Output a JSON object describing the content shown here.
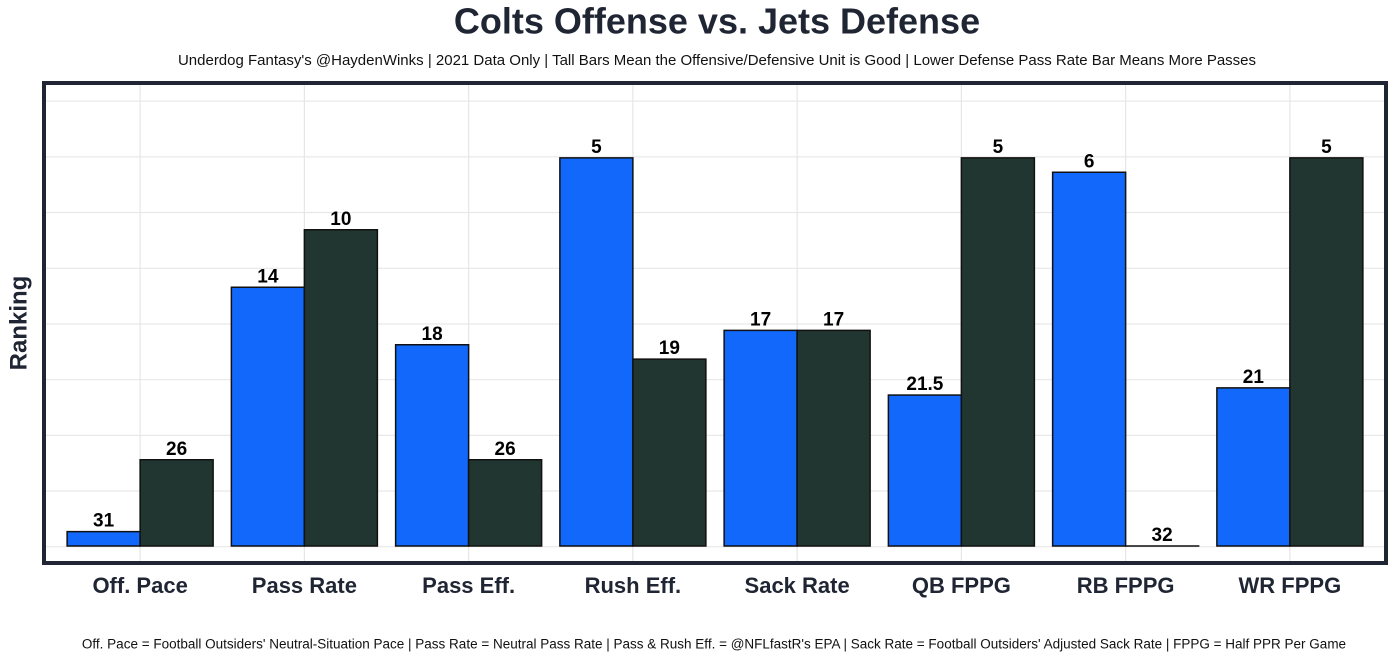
{
  "chart_data": {
    "type": "bar",
    "title": "Colts Offense vs. Jets Defense",
    "subtitle": "Underdog Fantasy's @HaydenWinks | 2021 Data Only | Tall Bars Mean the Offensive/Defensive Unit is Good | Lower Defense Pass Rate Bar Means More Passes",
    "y_label": "Ranking",
    "footnote": "Off. Pace = Football Outsiders' Neutral-Situation Pace | Pass Rate = Neutral Pass Rate | Pass & Rush Eff. = @NFLfastR's EPA | Sack Rate = Football Outsiders' Adjusted Sack Rate | FPPG = Half PPR Per Game",
    "categories": [
      "Off. Pace",
      "Pass Rate",
      "Pass Eff.",
      "Rush Eff.",
      "Sack Rate",
      "QB FPPG",
      "RB FPPG",
      "WR FPPG"
    ],
    "series": [
      {
        "color": "#1268fb",
        "values": [
          31,
          14,
          18,
          5,
          17,
          21.5,
          6,
          21
        ]
      },
      {
        "color": "#223631",
        "values": [
          26,
          10,
          26,
          19,
          17,
          5,
          32,
          5
        ]
      }
    ],
    "ylim": [
      32,
      0
    ]
  }
}
